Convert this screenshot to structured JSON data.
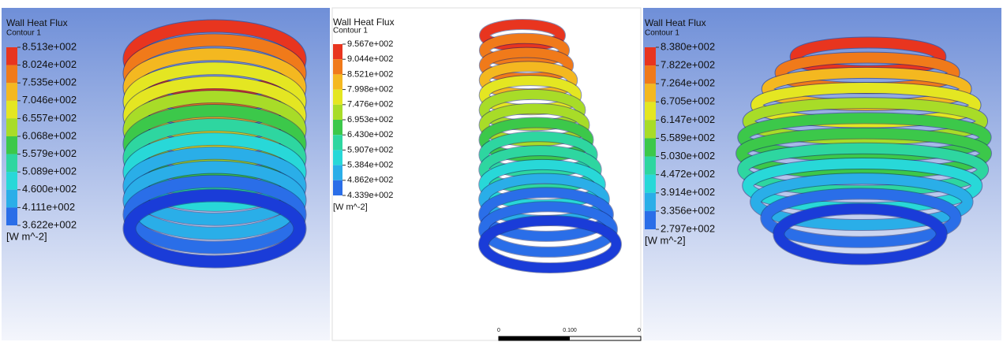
{
  "panels": [
    {
      "title": "Wall Heat Flux",
      "subtitle": "Contour 1",
      "legend_labels": [
        "8.513e+002",
        "8.024e+002",
        "7.535e+002",
        "7.046e+002",
        "6.557e+002",
        "6.068e+002",
        "5.579e+002",
        "5.089e+002",
        "4.600e+002",
        "4.111e+002",
        "3.622e+002"
      ],
      "unit": "[W m^-2]"
    },
    {
      "title": "Wall Heat Flux",
      "subtitle": "Contour 1",
      "legend_labels": [
        "9.567e+002",
        "9.044e+002",
        "8.521e+002",
        "7.998e+002",
        "7.476e+002",
        "6.953e+002",
        "6.430e+002",
        "5.907e+002",
        "5.384e+002",
        "4.862e+002",
        "4.339e+002"
      ],
      "unit": "[W m^-2]"
    },
    {
      "title": "Wall Heat Flux",
      "subtitle": "Contour 1",
      "legend_labels": [
        "8.380e+002",
        "7.822e+002",
        "7.264e+002",
        "6.705e+002",
        "6.147e+002",
        "5.589e+002",
        "5.030e+002",
        "4.472e+002",
        "3.914e+002",
        "3.356e+002",
        "2.797e+002"
      ],
      "unit": "[W m^-2]"
    }
  ],
  "scale_bar": {
    "labels": [
      "0",
      "0.100",
      "0"
    ]
  }
}
